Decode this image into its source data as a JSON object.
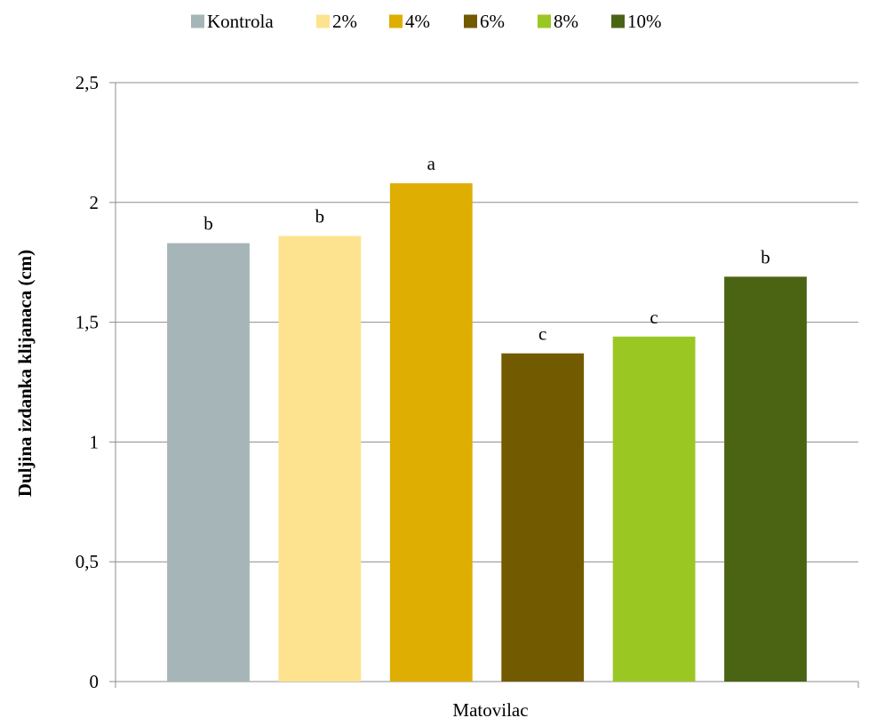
{
  "chart_data": {
    "type": "bar",
    "categories": [
      "Matovilac"
    ],
    "xlabel": "Matovilac",
    "ylabel": "Duljina izdanka klijanaca (cm)",
    "ylim": [
      0,
      2.5
    ],
    "yticks": [
      "0",
      "0,5",
      "1",
      "1,5",
      "2",
      "2,5"
    ],
    "ytick_values": [
      0,
      0.5,
      1,
      1.5,
      2,
      2.5
    ],
    "grid": true,
    "legend_position": "top",
    "series": [
      {
        "name": "Kontrola",
        "values": [
          1.83
        ],
        "label": "b",
        "color": "#a6b5b8"
      },
      {
        "name": "2%",
        "values": [
          1.86
        ],
        "label": "b",
        "color": "#fde38f"
      },
      {
        "name": "4%",
        "values": [
          2.08
        ],
        "label": "a",
        "color": "#dfae03"
      },
      {
        "name": "6%",
        "values": [
          1.37
        ],
        "label": "c",
        "color": "#725a00"
      },
      {
        "name": "8%",
        "values": [
          1.44
        ],
        "label": "c",
        "color": "#9bc723"
      },
      {
        "name": "10%",
        "values": [
          1.69
        ],
        "label": "b",
        "color": "#4b6414"
      }
    ]
  }
}
